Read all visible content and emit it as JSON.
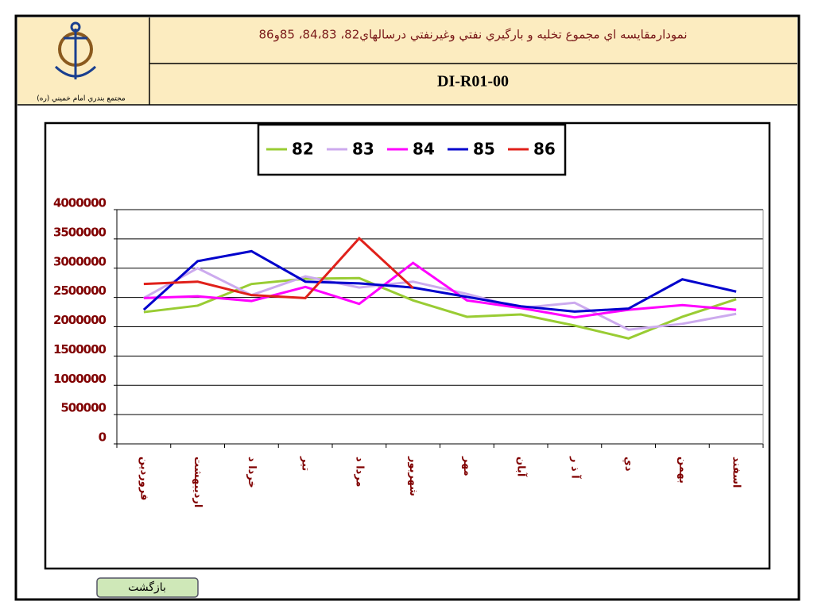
{
  "header": {
    "title": "نمودارمقایسه اي مجموع تخليه و بارگيري نفتي وغيرنفتي درسالهاي82، 84،83، 85و86",
    "code": "DI-R01-00",
    "logo_caption": "مجتمع بندري امام خميني (ره)"
  },
  "button": "بازگشت",
  "chart_data": {
    "type": "line",
    "categories": [
      "فروردين",
      "ارديبهشت",
      "خردا د",
      "تير",
      "مردا د",
      "شهريور",
      "مهر",
      "آبان",
      "آ ذ ر",
      "دي",
      "بهمن",
      "اسفند"
    ],
    "series": [
      {
        "name": "82",
        "color": "#99cc33",
        "values": [
          2250000,
          2360000,
          2730000,
          2820000,
          2830000,
          2450000,
          2170000,
          2210000,
          2020000,
          1800000,
          2170000,
          2470000
        ]
      },
      {
        "name": "83",
        "color": "#ccaaee",
        "values": [
          2490000,
          3000000,
          2540000,
          2860000,
          2670000,
          2770000,
          2560000,
          2320000,
          2410000,
          1950000,
          2050000,
          2220000
        ]
      },
      {
        "name": "84",
        "color": "#ff00ff",
        "values": [
          2490000,
          2520000,
          2440000,
          2680000,
          2390000,
          3090000,
          2450000,
          2320000,
          2160000,
          2290000,
          2370000,
          2290000
        ]
      },
      {
        "name": "85",
        "color": "#0000cc",
        "values": [
          2290000,
          3120000,
          3290000,
          2770000,
          2740000,
          2670000,
          2510000,
          2350000,
          2260000,
          2310000,
          2810000,
          2600000
        ]
      },
      {
        "name": "86",
        "color": "#e0201a",
        "values": [
          2730000,
          2770000,
          2540000,
          2490000,
          3510000,
          2660000,
          null,
          null,
          null,
          null,
          null,
          null
        ]
      }
    ],
    "ylim": [
      0,
      4000000
    ],
    "yticks": [
      0,
      500000,
      1000000,
      1500000,
      2000000,
      2500000,
      3000000,
      3500000,
      4000000
    ],
    "grid": true,
    "legend": "top"
  }
}
